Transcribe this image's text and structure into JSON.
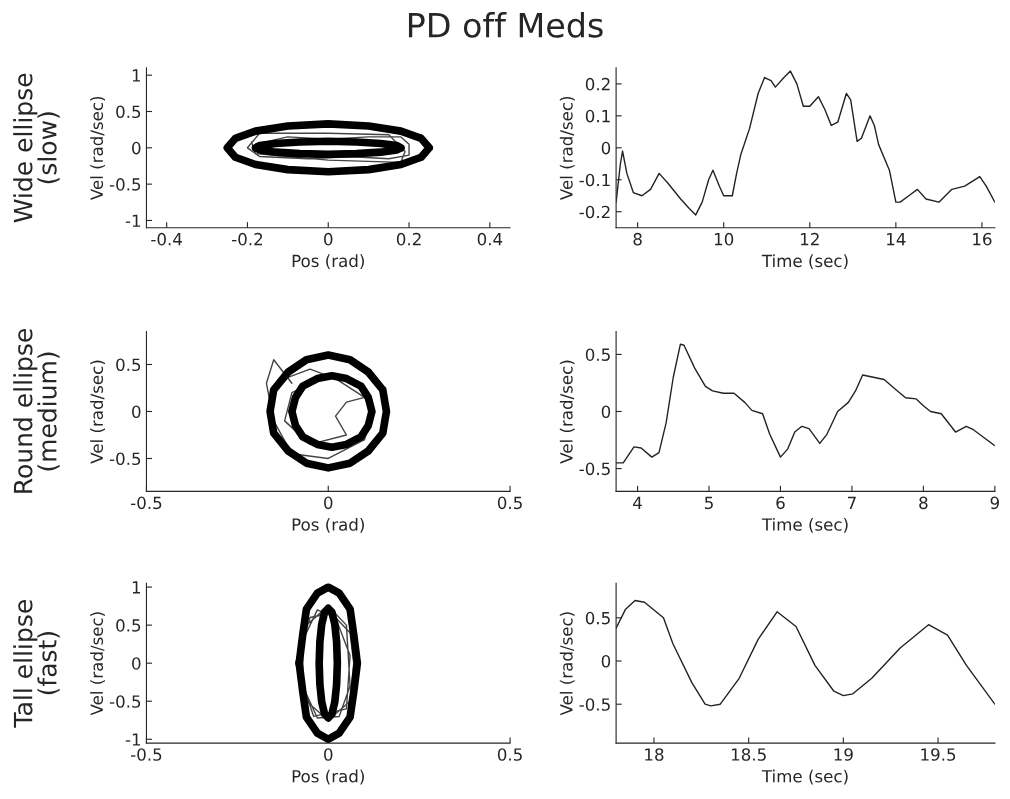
{
  "chart_data": [
    {
      "type": "line",
      "title": "PD off Meds",
      "annotations": [
        "Wide ellipse\n(slow)"
      ],
      "xlabel": "Pos (rad)",
      "ylabel": "Vel (rad/sec)",
      "xlim": [
        -0.45,
        0.45
      ],
      "xticks": [
        -0.4,
        -0.2,
        0,
        0.2,
        0.4
      ],
      "ylim": [
        -1.1,
        1.1
      ],
      "yticks": [
        -1,
        -0.5,
        0,
        0.5,
        1
      ],
      "grid": false,
      "legend": false,
      "series": [
        {
          "color": "#444444",
          "x": [
            -0.18,
            -0.1,
            0,
            0.1,
            0.18,
            0.2,
            0.2,
            0.15,
            0.05,
            -0.05,
            -0.17,
            -0.2,
            -0.17,
            0,
            0.15,
            0.19,
            0.18,
            0,
            -0.18,
            -0.19
          ],
          "values": [
            0.05,
            0.15,
            0.12,
            0.15,
            0.15,
            0.05,
            -0.1,
            -0.15,
            -0.12,
            -0.15,
            -0.12,
            0,
            0.2,
            0.2,
            0.18,
            -0.05,
            -0.2,
            -0.17,
            -0.08,
            0.08
          ]
        },
        {
          "color": "#000000",
          "x": [
            0.25,
            0.23,
            0.18,
            0.1,
            0,
            -0.1,
            -0.18,
            -0.23,
            -0.25,
            -0.23,
            -0.18,
            -0.1,
            0,
            0.1,
            0.18,
            0.23,
            0.25,
            0.23
          ],
          "values": [
            0,
            0.13,
            0.23,
            0.3,
            0.33,
            0.3,
            0.23,
            0.13,
            0,
            -0.13,
            -0.23,
            -0.3,
            -0.33,
            -0.3,
            -0.23,
            -0.13,
            0,
            0.13
          ]
        },
        {
          "color": "#000000",
          "x": [
            0.18,
            0.17,
            0.13,
            0.07,
            0,
            -0.07,
            -0.13,
            -0.17,
            -0.18,
            -0.17,
            -0.13,
            -0.07,
            0,
            0.07,
            0.13,
            0.17,
            0.18,
            0.17
          ],
          "values": [
            0,
            0.03,
            0.06,
            0.08,
            0.09,
            0.08,
            0.06,
            0.03,
            0,
            -0.03,
            -0.06,
            -0.08,
            -0.09,
            -0.08,
            -0.06,
            -0.03,
            0,
            0.03
          ]
        }
      ]
    },
    {
      "type": "line",
      "xlabel": "Time (sec)",
      "ylabel": "Vel (rad/sec)",
      "xlim": [
        7.5,
        16.3
      ],
      "xticks": [
        8,
        10,
        12,
        14,
        16
      ],
      "ylim": [
        -0.25,
        0.25
      ],
      "yticks": [
        -0.2,
        -0.1,
        0,
        0.1,
        0.2
      ],
      "grid": false,
      "legend": false,
      "series": [
        {
          "color": "#222222",
          "x": [
            7.5,
            7.6,
            7.65,
            7.75,
            7.9,
            8.1,
            8.3,
            8.5,
            8.7,
            9.0,
            9.2,
            9.35,
            9.5,
            9.65,
            9.75,
            9.9,
            10.0,
            10.2,
            10.3,
            10.4,
            10.6,
            10.8,
            10.95,
            11.1,
            11.2,
            11.4,
            11.55,
            11.7,
            11.85,
            12.0,
            12.2,
            12.35,
            12.5,
            12.65,
            12.85,
            12.95,
            13.1,
            13.2,
            13.4,
            13.5,
            13.6,
            13.85,
            14.0,
            14.1,
            14.3,
            14.5,
            14.7,
            15.0,
            15.3,
            15.6,
            15.95,
            16.1,
            16.3
          ],
          "values": [
            -0.17,
            -0.05,
            -0.01,
            -0.08,
            -0.14,
            -0.15,
            -0.13,
            -0.08,
            -0.11,
            -0.16,
            -0.19,
            -0.21,
            -0.17,
            -0.1,
            -0.07,
            -0.12,
            -0.15,
            -0.15,
            -0.08,
            -0.02,
            0.06,
            0.17,
            0.22,
            0.21,
            0.19,
            0.22,
            0.24,
            0.2,
            0.13,
            0.13,
            0.16,
            0.12,
            0.07,
            0.08,
            0.17,
            0.15,
            0.02,
            0.03,
            0.1,
            0.07,
            0.01,
            -0.07,
            -0.17,
            -0.17,
            -0.15,
            -0.13,
            -0.16,
            -0.17,
            -0.13,
            -0.12,
            -0.09,
            -0.12,
            -0.17
          ]
        }
      ]
    },
    {
      "type": "line",
      "annotations": [
        "Round ellipse\n(medium)"
      ],
      "xlabel": "Pos (rad)",
      "ylabel": "Vel (rad/sec)",
      "xlim": [
        -0.5,
        0.5
      ],
      "xticks": [
        -0.5,
        0,
        0.5
      ],
      "ylim": [
        -0.85,
        0.85
      ],
      "yticks": [
        -0.5,
        0,
        0.5
      ],
      "grid": false,
      "legend": false,
      "series": [
        {
          "color": "#444444",
          "x": [
            -0.1,
            -0.15,
            -0.17,
            -0.15,
            -0.1,
            0,
            0.1,
            0.12,
            0.08,
            0,
            -0.1,
            -0.12,
            -0.05,
            0.05,
            0.02,
            0.05,
            0.1,
            0.02,
            -0.05,
            -0.12
          ],
          "values": [
            0.3,
            0.55,
            0.3,
            -0.1,
            -0.45,
            -0.5,
            -0.3,
            0,
            0.3,
            0.38,
            0.2,
            -0.1,
            -0.35,
            -0.25,
            -0.05,
            0.1,
            0.15,
            0.35,
            0.45,
            0.35
          ]
        },
        {
          "color": "#000000",
          "x": [
            0.16,
            0.15,
            0.11,
            0.06,
            0,
            -0.06,
            -0.11,
            -0.15,
            -0.16,
            -0.15,
            -0.11,
            -0.06,
            0,
            0.06,
            0.11,
            0.15,
            0.16,
            0.15
          ],
          "values": [
            0,
            0.23,
            0.42,
            0.55,
            0.6,
            0.55,
            0.42,
            0.23,
            0,
            -0.23,
            -0.42,
            -0.55,
            -0.6,
            -0.55,
            -0.42,
            -0.23,
            0,
            0.23
          ]
        },
        {
          "color": "#000000",
          "x": [
            0.12,
            0.11,
            0.09,
            0.05,
            0.01,
            -0.03,
            -0.07,
            -0.09,
            -0.1,
            -0.09,
            -0.07,
            -0.03,
            0.01,
            0.05,
            0.09,
            0.11,
            0.12,
            0.11
          ],
          "values": [
            0,
            0.15,
            0.27,
            0.35,
            0.38,
            0.35,
            0.27,
            0.15,
            0,
            -0.15,
            -0.27,
            -0.35,
            -0.38,
            -0.35,
            -0.27,
            -0.15,
            0,
            0.15
          ]
        }
      ]
    },
    {
      "type": "line",
      "xlabel": "Time (sec)",
      "ylabel": "Vel (rad/sec)",
      "xlim": [
        3.7,
        9
      ],
      "xticks": [
        4,
        5,
        6,
        7,
        8,
        9
      ],
      "ylim": [
        -0.7,
        0.7
      ],
      "yticks": [
        -0.5,
        0,
        0.5
      ],
      "grid": false,
      "legend": false,
      "series": [
        {
          "color": "#222222",
          "x": [
            3.7,
            3.8,
            3.95,
            4.05,
            4.2,
            4.3,
            4.4,
            4.5,
            4.6,
            4.65,
            4.8,
            4.95,
            5.05,
            5.2,
            5.35,
            5.5,
            5.6,
            5.75,
            5.85,
            6.0,
            6.1,
            6.2,
            6.3,
            6.4,
            6.55,
            6.65,
            6.8,
            6.95,
            7.05,
            7.15,
            7.3,
            7.45,
            7.6,
            7.75,
            7.9,
            8.0,
            8.1,
            8.25,
            8.45,
            8.6,
            8.7,
            8.85,
            9.0
          ],
          "values": [
            -0.45,
            -0.45,
            -0.31,
            -0.32,
            -0.4,
            -0.36,
            -0.1,
            0.3,
            0.59,
            0.58,
            0.38,
            0.22,
            0.18,
            0.16,
            0.16,
            0.08,
            0.01,
            -0.02,
            -0.2,
            -0.4,
            -0.33,
            -0.18,
            -0.13,
            -0.15,
            -0.28,
            -0.2,
            0.0,
            0.08,
            0.18,
            0.32,
            0.3,
            0.28,
            0.2,
            0.12,
            0.11,
            0.05,
            0.0,
            -0.02,
            -0.18,
            -0.13,
            -0.16,
            -0.23,
            -0.3
          ]
        }
      ]
    },
    {
      "type": "line",
      "annotations": [
        "Tall ellipse\n(fast)"
      ],
      "xlabel": "Pos (rad)",
      "ylabel": "Vel (rad/sec)",
      "xlim": [
        -0.5,
        0.5
      ],
      "xticks": [
        -0.5,
        0,
        0.5
      ],
      "ylim": [
        -1.05,
        1.05
      ],
      "yticks": [
        -1,
        -0.5,
        0,
        0.5,
        1
      ],
      "grid": false,
      "legend": false,
      "series": [
        {
          "color": "#444444",
          "x": [
            0,
            0.06,
            0.07,
            0.06,
            0,
            -0.06,
            -0.08,
            -0.06,
            0,
            0.05,
            0.06,
            0.03,
            -0.03,
            -0.07,
            -0.07,
            -0.03,
            0.02,
            0.06,
            0.05,
            -0.04,
            -0.09,
            -0.05,
            0
          ],
          "values": [
            0.7,
            0.4,
            0,
            -0.5,
            -0.75,
            -0.5,
            0,
            0.5,
            0.75,
            0.5,
            -0.3,
            -0.7,
            -0.72,
            -0.3,
            0.3,
            0.7,
            0.6,
            0.1,
            -0.6,
            -0.7,
            0,
            0.6,
            0.65
          ]
        },
        {
          "color": "#000000",
          "x": [
            0.08,
            0.07,
            0.06,
            0.03,
            0,
            -0.03,
            -0.06,
            -0.07,
            -0.08,
            -0.07,
            -0.06,
            -0.03,
            0,
            0.03,
            0.06,
            0.07,
            0.08,
            0.07
          ],
          "values": [
            0,
            0.38,
            0.71,
            0.92,
            1,
            0.92,
            0.71,
            0.38,
            0,
            -0.38,
            -0.71,
            -0.92,
            -1,
            -0.92,
            -0.71,
            -0.38,
            0,
            0.38
          ]
        },
        {
          "color": "#000000",
          "x": [
            0.025,
            0.023,
            0.018,
            0.01,
            0,
            -0.01,
            -0.018,
            -0.023,
            -0.025,
            -0.023,
            -0.018,
            -0.01,
            0,
            0.01,
            0.018,
            0.023,
            0.025,
            0.023
          ],
          "values": [
            0,
            0.28,
            0.51,
            0.67,
            0.72,
            0.67,
            0.51,
            0.28,
            0,
            -0.28,
            -0.51,
            -0.67,
            -0.72,
            -0.67,
            -0.51,
            -0.28,
            0,
            0.28
          ]
        }
      ]
    },
    {
      "type": "line",
      "xlabel": "Time (sec)",
      "ylabel": "Vel (rad/sec)",
      "xlim": [
        17.8,
        19.8
      ],
      "xticks": [
        18,
        18.5,
        19,
        19.5
      ],
      "ylim": [
        -0.95,
        0.9
      ],
      "yticks": [
        -0.5,
        0,
        0.5
      ],
      "grid": false,
      "legend": false,
      "series": [
        {
          "color": "#222222",
          "x": [
            17.8,
            17.85,
            17.9,
            17.95,
            18.05,
            18.1,
            18.2,
            18.27,
            18.3,
            18.35,
            18.45,
            18.55,
            18.65,
            18.75,
            18.85,
            18.95,
            19.0,
            19.05,
            19.15,
            19.3,
            19.45,
            19.55,
            19.65,
            19.8
          ],
          "values": [
            0.38,
            0.6,
            0.7,
            0.68,
            0.5,
            0.2,
            -0.25,
            -0.5,
            -0.52,
            -0.5,
            -0.2,
            0.25,
            0.57,
            0.4,
            -0.05,
            -0.35,
            -0.4,
            -0.38,
            -0.2,
            0.15,
            0.42,
            0.3,
            -0.05,
            -0.5
          ]
        }
      ]
    }
  ]
}
